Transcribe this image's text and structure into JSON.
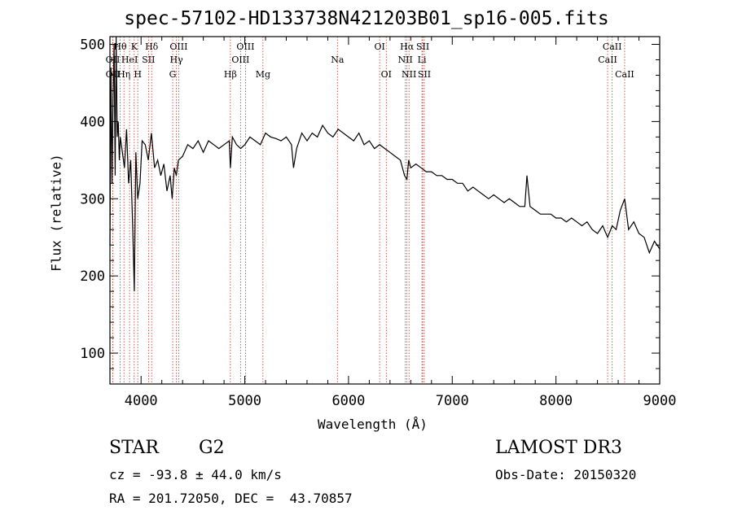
{
  "chart_data": {
    "type": "line",
    "title": "spec-57102-HD133738N421203B01_sp16-005.fits",
    "xlabel": "Wavelength (Å)",
    "ylabel": "Flux (relative)",
    "xlim": [
      3700,
      9000
    ],
    "ylim": [
      60,
      510
    ],
    "x_ticks": [
      4000,
      5000,
      6000,
      7000,
      8000,
      9000
    ],
    "y_ticks": [
      100,
      200,
      300,
      400,
      500
    ],
    "grid": false,
    "series": [
      {
        "name": "spectrum",
        "x": [
          3700,
          3710,
          3720,
          3730,
          3740,
          3750,
          3760,
          3770,
          3780,
          3790,
          3800,
          3820,
          3840,
          3860,
          3880,
          3900,
          3920,
          3935,
          3950,
          3968,
          3990,
          4010,
          4040,
          4070,
          4100,
          4130,
          4160,
          4190,
          4220,
          4250,
          4280,
          4300,
          4320,
          4340,
          4360,
          4400,
          4450,
          4500,
          4550,
          4600,
          4650,
          4700,
          4750,
          4800,
          4850,
          4861,
          4880,
          4920,
          4960,
          5000,
          5050,
          5100,
          5150,
          5200,
          5250,
          5300,
          5350,
          5400,
          5450,
          5470,
          5500,
          5550,
          5600,
          5650,
          5700,
          5750,
          5800,
          5850,
          5900,
          5950,
          6000,
          6050,
          6100,
          6150,
          6200,
          6250,
          6300,
          6350,
          6400,
          6450,
          6500,
          6540,
          6563,
          6580,
          6600,
          6650,
          6700,
          6750,
          6800,
          6850,
          6900,
          6950,
          7000,
          7050,
          7100,
          7150,
          7200,
          7250,
          7300,
          7350,
          7400,
          7450,
          7500,
          7550,
          7600,
          7650,
          7700,
          7720,
          7750,
          7800,
          7850,
          7900,
          7950,
          8000,
          8050,
          8100,
          8150,
          8200,
          8250,
          8300,
          8350,
          8400,
          8450,
          8498,
          8542,
          8580,
          8620,
          8662,
          8700,
          8750,
          8800,
          8850,
          8900,
          8950,
          9000
        ],
        "y": [
          240,
          470,
          320,
          430,
          500,
          330,
          520,
          380,
          400,
          350,
          380,
          360,
          340,
          390,
          320,
          350,
          260,
          180,
          360,
          300,
          320,
          375,
          370,
          350,
          385,
          340,
          350,
          330,
          345,
          310,
          330,
          300,
          340,
          330,
          350,
          355,
          370,
          365,
          375,
          360,
          375,
          370,
          365,
          370,
          375,
          340,
          380,
          370,
          365,
          370,
          380,
          375,
          370,
          385,
          380,
          378,
          375,
          380,
          370,
          340,
          365,
          385,
          375,
          385,
          380,
          395,
          385,
          380,
          390,
          385,
          380,
          375,
          385,
          370,
          375,
          365,
          370,
          365,
          360,
          355,
          350,
          330,
          325,
          350,
          340,
          345,
          340,
          335,
          335,
          330,
          330,
          325,
          325,
          320,
          320,
          310,
          315,
          310,
          305,
          300,
          305,
          300,
          295,
          300,
          295,
          290,
          290,
          330,
          290,
          285,
          280,
          280,
          280,
          275,
          275,
          270,
          275,
          270,
          265,
          270,
          260,
          255,
          265,
          250,
          265,
          260,
          285,
          300,
          260,
          270,
          255,
          250,
          230,
          245,
          235
        ]
      }
    ],
    "line_markers": [
      {
        "label": "Hθ",
        "wave": 3798,
        "row": 0
      },
      {
        "label": "OII",
        "wave": 3727,
        "row": 1
      },
      {
        "label": "OII",
        "wave": 3727,
        "row": 2
      },
      {
        "label": "K",
        "wave": 3934,
        "row": 0
      },
      {
        "label": "HeI",
        "wave": 3889,
        "row": 1
      },
      {
        "label": "Hη",
        "wave": 3835,
        "row": 2
      },
      {
        "label": "Hδ",
        "wave": 4102,
        "row": 0
      },
      {
        "label": "SII",
        "wave": 4072,
        "row": 1
      },
      {
        "label": "H",
        "wave": 3968,
        "row": 2
      },
      {
        "label": "OIII",
        "wave": 4363,
        "row": 0
      },
      {
        "label": "Hγ",
        "wave": 4341,
        "row": 1
      },
      {
        "label": "G",
        "wave": 4305,
        "row": 2
      },
      {
        "label": "OIII",
        "wave": 5007,
        "row": 0
      },
      {
        "label": "OIII",
        "wave": 4959,
        "row": 1
      },
      {
        "label": "Hβ",
        "wave": 4861,
        "row": 2
      },
      {
        "label": "Mg",
        "wave": 5175,
        "row": 2
      },
      {
        "label": "Na",
        "wave": 5893,
        "row": 1
      },
      {
        "label": "OI",
        "wave": 6300,
        "row": 0
      },
      {
        "label": "OI",
        "wave": 6364,
        "row": 2
      },
      {
        "label": "Hα",
        "wave": 6563,
        "row": 0
      },
      {
        "label": "NII",
        "wave": 6548,
        "row": 1
      },
      {
        "label": "NII",
        "wave": 6583,
        "row": 2
      },
      {
        "label": "SII",
        "wave": 6716,
        "row": 0
      },
      {
        "label": "Li",
        "wave": 6708,
        "row": 1
      },
      {
        "label": "SII",
        "wave": 6731,
        "row": 2
      },
      {
        "label": "CaII",
        "wave": 8542,
        "row": 0
      },
      {
        "label": "CaII",
        "wave": 8498,
        "row": 1
      },
      {
        "label": "CaII",
        "wave": 8662,
        "row": 2
      }
    ]
  },
  "info": {
    "obj_class": "STAR",
    "subclass": "G2",
    "survey": "LAMOST DR3",
    "redshift": "cz = -93.8 ± 44.0 km/s",
    "obs_date": "Obs-Date: 20150320",
    "coords": "RA = 201.72050, DEC =  43.70857"
  }
}
